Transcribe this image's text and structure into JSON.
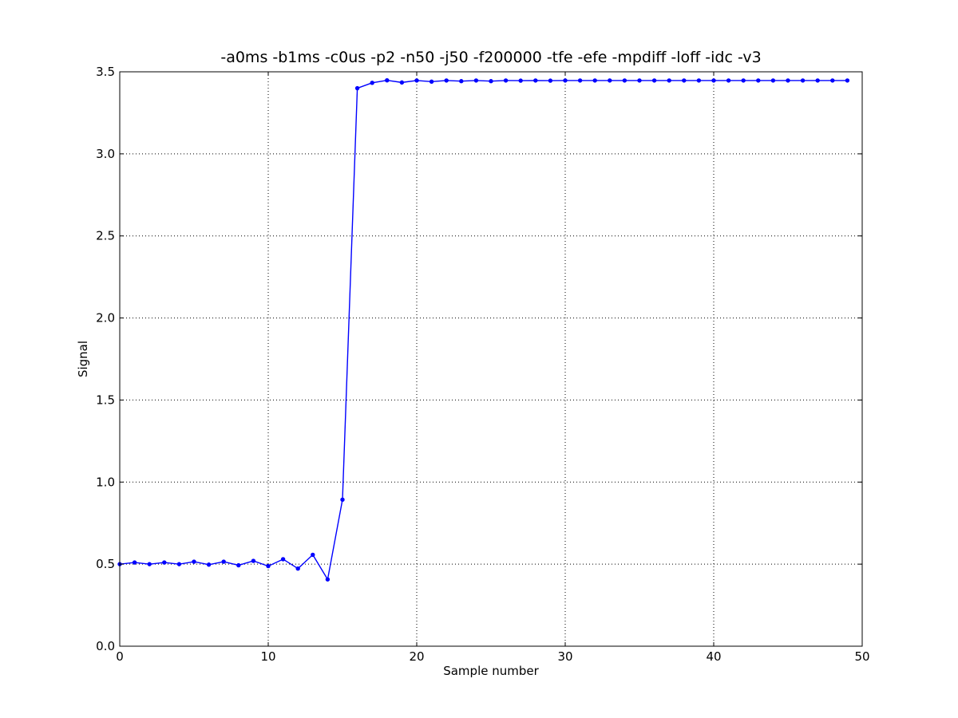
{
  "chart_data": {
    "type": "line",
    "title": "-a0ms -b1ms -c0us -p2 -n50 -j50 -f200000 -tfe -efe -mpdiff -loff -idc -v3",
    "xlabel": "Sample number",
    "ylabel": "Signal",
    "xlim": [
      0,
      50
    ],
    "ylim": [
      0.0,
      3.5
    ],
    "xticks": [
      0,
      10,
      20,
      30,
      40,
      50
    ],
    "xtick_labels": [
      "0",
      "10",
      "20",
      "30",
      "40",
      "50"
    ],
    "yticks": [
      0.0,
      0.5,
      1.0,
      1.5,
      2.0,
      2.5,
      3.0,
      3.5
    ],
    "ytick_labels": [
      "0.0",
      "0.5",
      "1.0",
      "1.5",
      "2.0",
      "2.5",
      "3.0",
      "3.5"
    ],
    "grid": true,
    "grid_style": "dotted",
    "legend": "none",
    "series": [
      {
        "color": "#0000ff",
        "marker": "dot",
        "x": [
          0,
          1,
          2,
          3,
          4,
          5,
          6,
          7,
          8,
          9,
          10,
          11,
          12,
          13,
          14,
          15,
          16,
          17,
          18,
          19,
          20,
          21,
          22,
          23,
          24,
          25,
          26,
          27,
          28,
          29,
          30,
          31,
          32,
          33,
          34,
          35,
          36,
          37,
          38,
          39,
          40,
          41,
          42,
          43,
          44,
          45,
          46,
          47,
          48,
          49
        ],
        "y": [
          0.5,
          0.51,
          0.5,
          0.51,
          0.5,
          0.515,
          0.497,
          0.515,
          0.493,
          0.52,
          0.488,
          0.53,
          0.473,
          0.557,
          0.407,
          0.893,
          3.4,
          3.433,
          3.448,
          3.435,
          3.447,
          3.44,
          3.447,
          3.443,
          3.447,
          3.443,
          3.447,
          3.446,
          3.447,
          3.446,
          3.447,
          3.447,
          3.447,
          3.447,
          3.447,
          3.447,
          3.447,
          3.447,
          3.447,
          3.447,
          3.447,
          3.447,
          3.447,
          3.447,
          3.447,
          3.447,
          3.447,
          3.447,
          3.447,
          3.447
        ]
      }
    ]
  }
}
